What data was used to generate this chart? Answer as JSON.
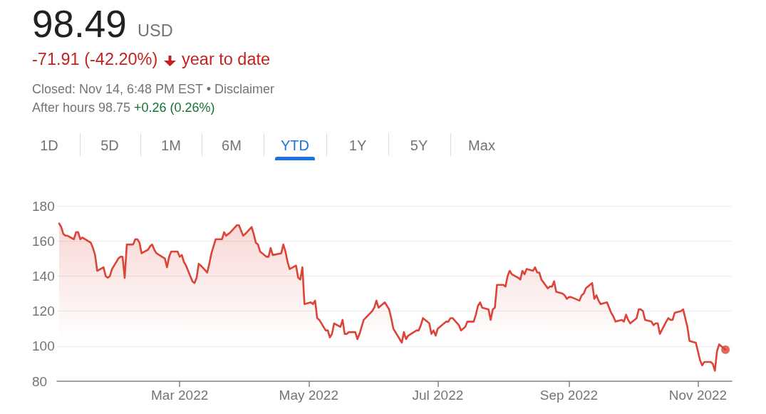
{
  "chart_data": {
    "type": "area",
    "annotations": [
      "98.49",
      "USD",
      "-71.91 (-42.20%)",
      "year to date",
      "Closed: Nov 14, 6:48 PM EST • Disclaimer",
      "After hours 98.75",
      "+0.26 (0.26%)",
      "1D",
      "5D",
      "1M",
      "6M",
      "YTD",
      "1Y",
      "5Y",
      "Max"
    ],
    "x": [
      "2022-01-03",
      "2022-01-04",
      "2022-01-05",
      "2022-01-06",
      "2022-01-07",
      "2022-01-10",
      "2022-01-11",
      "2022-01-12",
      "2022-01-13",
      "2022-01-14",
      "2022-01-18",
      "2022-01-19",
      "2022-01-20",
      "2022-01-21",
      "2022-01-24",
      "2022-01-25",
      "2022-01-26",
      "2022-01-27",
      "2022-01-28",
      "2022-01-31",
      "2022-02-01",
      "2022-02-02",
      "2022-02-03",
      "2022-02-04",
      "2022-02-07",
      "2022-02-08",
      "2022-02-09",
      "2022-02-10",
      "2022-02-11",
      "2022-02-14",
      "2022-02-15",
      "2022-02-16",
      "2022-02-17",
      "2022-02-18",
      "2022-02-22",
      "2022-02-23",
      "2022-02-24",
      "2022-02-25",
      "2022-02-28",
      "2022-03-01",
      "2022-03-02",
      "2022-03-03",
      "2022-03-04",
      "2022-03-07",
      "2022-03-08",
      "2022-03-09",
      "2022-03-10",
      "2022-03-11",
      "2022-03-14",
      "2022-03-15",
      "2022-03-16",
      "2022-03-17",
      "2022-03-18",
      "2022-03-21",
      "2022-03-22",
      "2022-03-23",
      "2022-03-24",
      "2022-03-25",
      "2022-03-28",
      "2022-03-29",
      "2022-03-30",
      "2022-03-31",
      "2022-04-01",
      "2022-04-04",
      "2022-04-05",
      "2022-04-06",
      "2022-04-07",
      "2022-04-08",
      "2022-04-11",
      "2022-04-12",
      "2022-04-13",
      "2022-04-14",
      "2022-04-18",
      "2022-04-19",
      "2022-04-20",
      "2022-04-21",
      "2022-04-22",
      "2022-04-25",
      "2022-04-26",
      "2022-04-27",
      "2022-04-28",
      "2022-04-29",
      "2022-05-02",
      "2022-05-03",
      "2022-05-04",
      "2022-05-05",
      "2022-05-06",
      "2022-05-09",
      "2022-05-10",
      "2022-05-11",
      "2022-05-12",
      "2022-05-13",
      "2022-05-16",
      "2022-05-17",
      "2022-05-18",
      "2022-05-19",
      "2022-05-20",
      "2022-05-23",
      "2022-05-24",
      "2022-05-25",
      "2022-05-26",
      "2022-05-27",
      "2022-05-31",
      "2022-06-01",
      "2022-06-02",
      "2022-06-03",
      "2022-06-06",
      "2022-06-07",
      "2022-06-08",
      "2022-06-09",
      "2022-06-10",
      "2022-06-13",
      "2022-06-14",
      "2022-06-15",
      "2022-06-16",
      "2022-06-17",
      "2022-06-21",
      "2022-06-22",
      "2022-06-23",
      "2022-06-24",
      "2022-06-27",
      "2022-06-28",
      "2022-06-29",
      "2022-06-30",
      "2022-07-01",
      "2022-07-05",
      "2022-07-06",
      "2022-07-07",
      "2022-07-08",
      "2022-07-11",
      "2022-07-12",
      "2022-07-13",
      "2022-07-14",
      "2022-07-15",
      "2022-07-18",
      "2022-07-19",
      "2022-07-20",
      "2022-07-21",
      "2022-07-22",
      "2022-07-25",
      "2022-07-26",
      "2022-07-27",
      "2022-07-28",
      "2022-07-29",
      "2022-08-01",
      "2022-08-02",
      "2022-08-03",
      "2022-08-04",
      "2022-08-05",
      "2022-08-08",
      "2022-08-09",
      "2022-08-10",
      "2022-08-11",
      "2022-08-12",
      "2022-08-15",
      "2022-08-16",
      "2022-08-17",
      "2022-08-18",
      "2022-08-19",
      "2022-08-22",
      "2022-08-23",
      "2022-08-24",
      "2022-08-25",
      "2022-08-26",
      "2022-08-29",
      "2022-08-30",
      "2022-08-31",
      "2022-09-01",
      "2022-09-02",
      "2022-09-06",
      "2022-09-07",
      "2022-09-08",
      "2022-09-09",
      "2022-09-12",
      "2022-09-13",
      "2022-09-14",
      "2022-09-15",
      "2022-09-16",
      "2022-09-19",
      "2022-09-20",
      "2022-09-21",
      "2022-09-22",
      "2022-09-23",
      "2022-09-26",
      "2022-09-27",
      "2022-09-28",
      "2022-09-29",
      "2022-09-30",
      "2022-10-03",
      "2022-10-04",
      "2022-10-05",
      "2022-10-06",
      "2022-10-07",
      "2022-10-10",
      "2022-10-11",
      "2022-10-12",
      "2022-10-13",
      "2022-10-14",
      "2022-10-17",
      "2022-10-18",
      "2022-10-19",
      "2022-10-20",
      "2022-10-21",
      "2022-10-24",
      "2022-10-25",
      "2022-10-26",
      "2022-10-27",
      "2022-10-28",
      "2022-10-31",
      "2022-11-01",
      "2022-11-02",
      "2022-11-03",
      "2022-11-04",
      "2022-11-07",
      "2022-11-08",
      "2022-11-09",
      "2022-11-10",
      "2022-11-11",
      "2022-11-14"
    ],
    "series": [
      {
        "color": "#db4437",
        "values": [
          170,
          168,
          164,
          163,
          163,
          161,
          165,
          165,
          161,
          162,
          159,
          156,
          152,
          143,
          145,
          140,
          139,
          140,
          144,
          150,
          151,
          151,
          139,
          158,
          158,
          161,
          161,
          159,
          153,
          155,
          157,
          158,
          155,
          153,
          150,
          145,
          151,
          154,
          154,
          151,
          152,
          148,
          146,
          137,
          136,
          139,
          147,
          146,
          142,
          147,
          153,
          157,
          161,
          161,
          165,
          163,
          164,
          165,
          169,
          169,
          166,
          163,
          164,
          168,
          164,
          159,
          158,
          154,
          151,
          151,
          156,
          152,
          153,
          158,
          154,
          148,
          144,
          146,
          139,
          138,
          145,
          124,
          125,
          124,
          126,
          116,
          115,
          109,
          109,
          105,
          107,
          113,
          111,
          115,
          107,
          107,
          108,
          108,
          104,
          107,
          111,
          115,
          120,
          122,
          126,
          122,
          125,
          123,
          121,
          116,
          110,
          104,
          102,
          108,
          104,
          106,
          109,
          109,
          112,
          116,
          113,
          107,
          109,
          106,
          110,
          114,
          114,
          116,
          116,
          112,
          109,
          110,
          111,
          114,
          114,
          118,
          123,
          125,
          122,
          121,
          115,
          121,
          122,
          135,
          135,
          134,
          140,
          143,
          141,
          139,
          138,
          143,
          141,
          144,
          143,
          145,
          142,
          142,
          138,
          133,
          134,
          134,
          137,
          131,
          130,
          129,
          127,
          128,
          128,
          126,
          129,
          130,
          133,
          136,
          127,
          129,
          126,
          124,
          125,
          122,
          119,
          117,
          114,
          115,
          114,
          118,
          115,
          113,
          116,
          121,
          121,
          120,
          115,
          114,
          112,
          113,
          113,
          107,
          114,
          116,
          115,
          115,
          119,
          120,
          121,
          116,
          111,
          103,
          102,
          97,
          92,
          89,
          91,
          91,
          90,
          86,
          97,
          101,
          98
        ]
      },
      {
        "type": "scatter",
        "color": "#db4437",
        "x": [
          "2022-11-14"
        ],
        "values": [
          98
        ]
      }
    ],
    "xlim": [
      "2022-01-02",
      "2022-11-17"
    ],
    "xticks": [
      {
        "value": "2022-03-01",
        "label": "Mar 2022"
      },
      {
        "value": "2022-05-01",
        "label": "May 2022"
      },
      {
        "value": "2022-07-01",
        "label": "Jul 2022"
      },
      {
        "value": "2022-09-01",
        "label": "Sep 2022"
      },
      {
        "value": "2022-11-01",
        "label": "Nov 2022"
      }
    ],
    "ylim": [
      80,
      180
    ],
    "yticks": [
      80,
      100,
      120,
      140,
      160,
      180
    ],
    "grid": "y"
  }
}
